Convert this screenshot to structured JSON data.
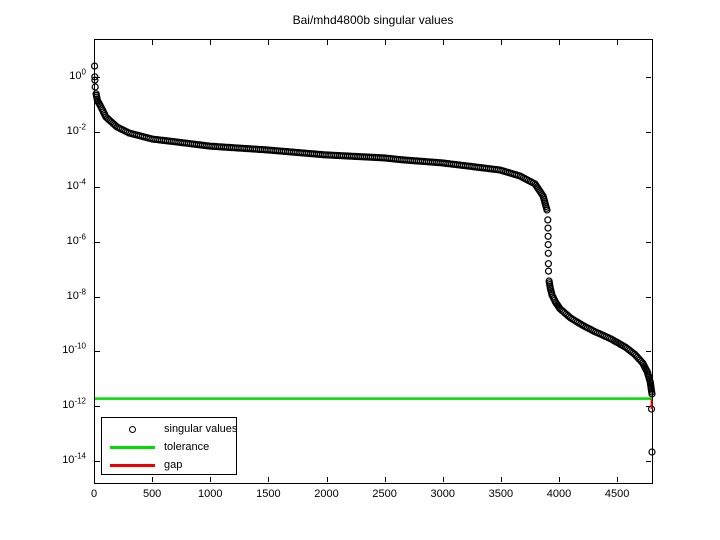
{
  "figure": {
    "background": "#ffffff"
  },
  "chart_data": {
    "type": "scatter",
    "title": "Bai/mhd4800b singular values",
    "xlabel": "",
    "ylabel": "",
    "grid": false,
    "x_axis": {
      "min": 0,
      "max": 4800,
      "ticks": [
        0,
        500,
        1000,
        1500,
        2000,
        2500,
        3000,
        3500,
        4000,
        4500
      ]
    },
    "y_axis": {
      "scale": "log10",
      "min_log10": -14.8,
      "max_log10": 1.4,
      "tick_base": "10",
      "tick_exponents": [
        0,
        -2,
        -4,
        -6,
        -8,
        -10,
        -12,
        -14
      ]
    },
    "marker": {
      "shape": "open-circle",
      "color": "#000000",
      "radius_px": 3,
      "stroke_px": 1.2
    },
    "series": {
      "name": "singular values",
      "dense_anchor_runs": [
        [
          [
            18,
            -0.6
          ],
          [
            30,
            -0.85
          ],
          [
            52,
            -1.01
          ],
          [
            103,
            -1.45
          ],
          [
            198,
            -1.81
          ],
          [
            301,
            -2.03
          ],
          [
            499,
            -2.25
          ],
          [
            697,
            -2.35
          ],
          [
            998,
            -2.51
          ],
          [
            1497,
            -2.65
          ],
          [
            1996,
            -2.83
          ],
          [
            2495,
            -2.94
          ],
          [
            2658,
            -3.01
          ],
          [
            2994,
            -3.12
          ],
          [
            3493,
            -3.38
          ],
          [
            3665,
            -3.6
          ],
          [
            3794,
            -3.89
          ],
          [
            3863,
            -4.33
          ],
          [
            3897,
            -4.84
          ]
        ],
        [
          [
            3915,
            -7.43
          ],
          [
            3925,
            -7.69
          ],
          [
            3940,
            -7.94
          ],
          [
            3970,
            -8.2
          ],
          [
            4010,
            -8.45
          ],
          [
            4100,
            -8.78
          ],
          [
            4200,
            -9.04
          ],
          [
            4300,
            -9.26
          ],
          [
            4450,
            -9.55
          ],
          [
            4570,
            -9.84
          ],
          [
            4650,
            -10.1
          ],
          [
            4720,
            -10.42
          ],
          [
            4760,
            -10.75
          ],
          [
            4785,
            -11.12
          ],
          [
            4795,
            -11.41
          ],
          [
            4800,
            -11.55
          ]
        ]
      ],
      "isolated_points": [
        [
          5,
          0.41
        ],
        [
          7,
          0.02
        ],
        [
          8,
          -0.1
        ],
        [
          10,
          -0.35
        ],
        [
          3904,
          -5.2
        ],
        [
          3905,
          -5.5
        ],
        [
          3906,
          -5.8
        ],
        [
          3907,
          -6.1
        ],
        [
          3908,
          -6.42
        ],
        [
          3909,
          -6.8
        ],
        [
          3910,
          -7.07
        ],
        [
          4796,
          -12.1
        ],
        [
          4800,
          -13.67
        ]
      ]
    },
    "tolerance": {
      "label": "tolerance",
      "value_log10": -11.72,
      "color": "#00dd00"
    },
    "gap": {
      "label": "gap",
      "x": 4797,
      "from_log10": -11.75,
      "to_log10": -12.1,
      "color": "#ee0000"
    }
  },
  "legend": {
    "items": [
      {
        "label": "singular values",
        "glyph": "circle-marker",
        "color": "#000000"
      },
      {
        "label": "tolerance",
        "glyph": "line",
        "color": "#00dd00"
      },
      {
        "label": "gap",
        "glyph": "line",
        "color": "#ee0000"
      }
    ]
  }
}
